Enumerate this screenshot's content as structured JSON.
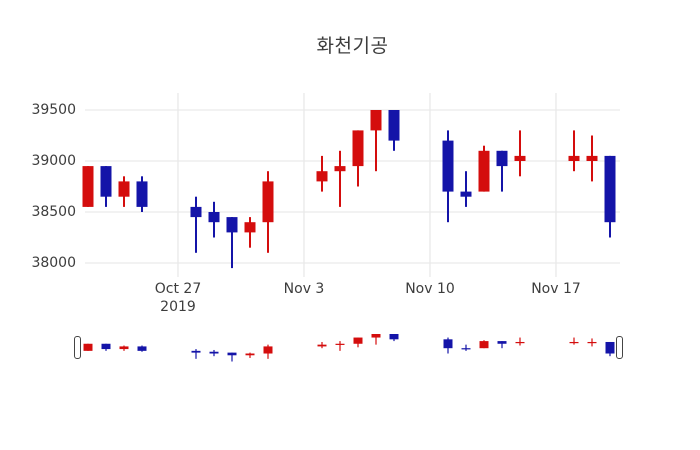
{
  "title": "화천기공",
  "colors": {
    "increasing": "#d40d0d",
    "decreasing": "#1414a8",
    "grid": "#e9e9e9",
    "text": "#3d3d3d",
    "background": "#ffffff"
  },
  "y_axis": {
    "ticks": [
      "39500",
      "39000",
      "38500",
      "38000"
    ]
  },
  "x_axis": {
    "ticks": [
      {
        "label": "Oct 27",
        "sub": "2019",
        "date": "2019-10-27"
      },
      {
        "label": "Nov 3",
        "date": "2019-11-03"
      },
      {
        "label": "Nov 10",
        "date": "2019-11-10"
      },
      {
        "label": "Nov 17",
        "date": "2019-11-17"
      }
    ]
  },
  "rangeslider": {
    "visible": true
  },
  "chart_data": {
    "type": "candlestick",
    "title": "화천기공",
    "xlabel": "",
    "ylabel": "",
    "ylim": [
      37880,
      39700
    ],
    "grid": true,
    "increasing_color": "#d40d0d",
    "decreasing_color": "#1414a8",
    "dates": [
      "2019-10-22",
      "2019-10-23",
      "2019-10-24",
      "2019-10-25",
      "2019-10-28",
      "2019-10-29",
      "2019-10-30",
      "2019-10-31",
      "2019-11-01",
      "2019-11-04",
      "2019-11-05",
      "2019-11-06",
      "2019-11-07",
      "2019-11-08",
      "2019-11-11",
      "2019-11-12",
      "2019-11-13",
      "2019-11-14",
      "2019-11-15",
      "2019-11-18",
      "2019-11-19",
      "2019-11-20"
    ],
    "open": [
      38550,
      38950,
      38650,
      38800,
      38550,
      38500,
      38450,
      38300,
      38400,
      38800,
      38900,
      38950,
      39300,
      39500,
      39200,
      38700,
      38700,
      39100,
      39000,
      39000,
      39000,
      39050
    ],
    "high": [
      38950,
      38950,
      38850,
      38850,
      38650,
      38600,
      38450,
      38450,
      38900,
      39050,
      39100,
      39300,
      39500,
      39500,
      39300,
      38900,
      39150,
      39100,
      39300,
      39300,
      39250,
      39050
    ],
    "low": [
      38550,
      38550,
      38550,
      38500,
      38100,
      38250,
      37950,
      38150,
      38100,
      38700,
      38550,
      38750,
      38900,
      39100,
      38400,
      38550,
      38700,
      38700,
      38850,
      38900,
      38800,
      38250
    ],
    "close": [
      38950,
      38650,
      38800,
      38550,
      38450,
      38400,
      38300,
      38400,
      38800,
      38900,
      38950,
      39300,
      39500,
      39200,
      38700,
      38650,
      39100,
      38950,
      39050,
      39050,
      39050,
      38400
    ]
  }
}
